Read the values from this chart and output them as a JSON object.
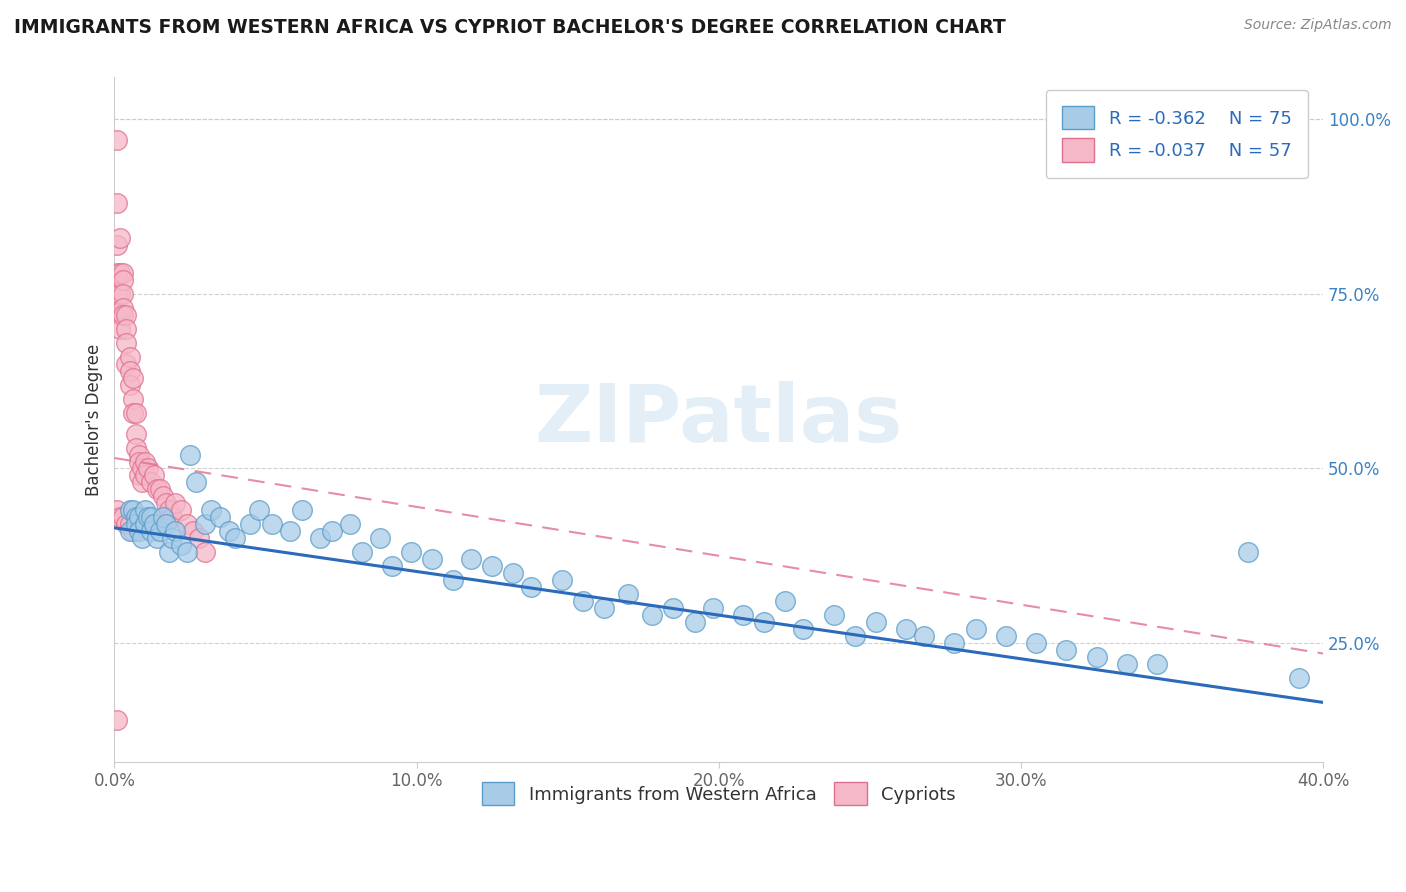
{
  "title": "IMMIGRANTS FROM WESTERN AFRICA VS CYPRIOT BACHELOR'S DEGREE CORRELATION CHART",
  "source": "Source: ZipAtlas.com",
  "ylabel": "Bachelor's Degree",
  "watermark": "ZIPatlas",
  "xlim": [
    0.0,
    0.4
  ],
  "ylim": [
    0.08,
    1.06
  ],
  "xtick_labels": [
    "0.0%",
    "10.0%",
    "20.0%",
    "30.0%",
    "40.0%"
  ],
  "xtick_vals": [
    0.0,
    0.1,
    0.2,
    0.3,
    0.4
  ],
  "ytick_labels_right": [
    "25.0%",
    "50.0%",
    "75.0%",
    "100.0%"
  ],
  "ytick_vals_right": [
    0.25,
    0.5,
    0.75,
    1.0
  ],
  "R_blue": -0.362,
  "N_blue": 75,
  "R_pink": -0.037,
  "N_pink": 57,
  "legend_label_blue": "Immigrants from Western Africa",
  "legend_label_pink": "Cypriots",
  "blue_scatter_color": "#a8cce8",
  "blue_edge_color": "#5b9dc9",
  "pink_scatter_color": "#f5b8c8",
  "pink_edge_color": "#e07090",
  "blue_line_color": "#2b6bba",
  "pink_line_color": "#e07090",
  "blue_scatter_x": [
    0.005,
    0.005,
    0.006,
    0.007,
    0.007,
    0.008,
    0.008,
    0.009,
    0.01,
    0.01,
    0.011,
    0.012,
    0.012,
    0.013,
    0.014,
    0.015,
    0.016,
    0.017,
    0.018,
    0.019,
    0.02,
    0.022,
    0.024,
    0.025,
    0.027,
    0.03,
    0.032,
    0.035,
    0.038,
    0.04,
    0.045,
    0.048,
    0.052,
    0.058,
    0.062,
    0.068,
    0.072,
    0.078,
    0.082,
    0.088,
    0.092,
    0.098,
    0.105,
    0.112,
    0.118,
    0.125,
    0.132,
    0.138,
    0.148,
    0.155,
    0.162,
    0.17,
    0.178,
    0.185,
    0.192,
    0.198,
    0.208,
    0.215,
    0.222,
    0.228,
    0.238,
    0.245,
    0.252,
    0.262,
    0.268,
    0.278,
    0.285,
    0.295,
    0.305,
    0.315,
    0.325,
    0.335,
    0.345,
    0.375,
    0.392
  ],
  "blue_scatter_y": [
    0.44,
    0.41,
    0.44,
    0.43,
    0.42,
    0.43,
    0.41,
    0.4,
    0.44,
    0.42,
    0.43,
    0.43,
    0.41,
    0.42,
    0.4,
    0.41,
    0.43,
    0.42,
    0.38,
    0.4,
    0.41,
    0.39,
    0.38,
    0.52,
    0.48,
    0.42,
    0.44,
    0.43,
    0.41,
    0.4,
    0.42,
    0.44,
    0.42,
    0.41,
    0.44,
    0.4,
    0.41,
    0.42,
    0.38,
    0.4,
    0.36,
    0.38,
    0.37,
    0.34,
    0.37,
    0.36,
    0.35,
    0.33,
    0.34,
    0.31,
    0.3,
    0.32,
    0.29,
    0.3,
    0.28,
    0.3,
    0.29,
    0.28,
    0.31,
    0.27,
    0.29,
    0.26,
    0.28,
    0.27,
    0.26,
    0.25,
    0.27,
    0.26,
    0.25,
    0.24,
    0.23,
    0.22,
    0.22,
    0.38,
    0.2
  ],
  "pink_scatter_x": [
    0.001,
    0.001,
    0.001,
    0.001,
    0.001,
    0.002,
    0.002,
    0.002,
    0.002,
    0.002,
    0.003,
    0.003,
    0.003,
    0.003,
    0.003,
    0.004,
    0.004,
    0.004,
    0.004,
    0.005,
    0.005,
    0.005,
    0.006,
    0.006,
    0.006,
    0.007,
    0.007,
    0.007,
    0.008,
    0.008,
    0.008,
    0.009,
    0.009,
    0.01,
    0.01,
    0.011,
    0.012,
    0.013,
    0.014,
    0.015,
    0.016,
    0.017,
    0.018,
    0.019,
    0.02,
    0.022,
    0.024,
    0.026,
    0.028,
    0.03,
    0.001,
    0.002,
    0.003,
    0.004,
    0.005,
    0.006,
    0.001
  ],
  "pink_scatter_y": [
    0.97,
    0.88,
    0.82,
    0.78,
    0.75,
    0.83,
    0.78,
    0.75,
    0.72,
    0.7,
    0.78,
    0.77,
    0.75,
    0.73,
    0.72,
    0.72,
    0.7,
    0.68,
    0.65,
    0.66,
    0.64,
    0.62,
    0.63,
    0.6,
    0.58,
    0.58,
    0.55,
    0.53,
    0.52,
    0.51,
    0.49,
    0.5,
    0.48,
    0.51,
    0.49,
    0.5,
    0.48,
    0.49,
    0.47,
    0.47,
    0.46,
    0.45,
    0.44,
    0.43,
    0.45,
    0.44,
    0.42,
    0.41,
    0.4,
    0.38,
    0.44,
    0.43,
    0.43,
    0.42,
    0.42,
    0.41,
    0.14
  ],
  "blue_trend_x": [
    0.0,
    0.4
  ],
  "blue_trend_y": [
    0.415,
    0.165
  ],
  "pink_trend_x": [
    0.0,
    0.4
  ],
  "pink_trend_y": [
    0.515,
    0.235
  ],
  "background_color": "#ffffff",
  "grid_color": "#cccccc",
  "title_color": "#1a1a1a",
  "source_color": "#888888",
  "tick_color": "#666666",
  "ytick_color": "#3b82c4",
  "ylabel_color": "#333333"
}
